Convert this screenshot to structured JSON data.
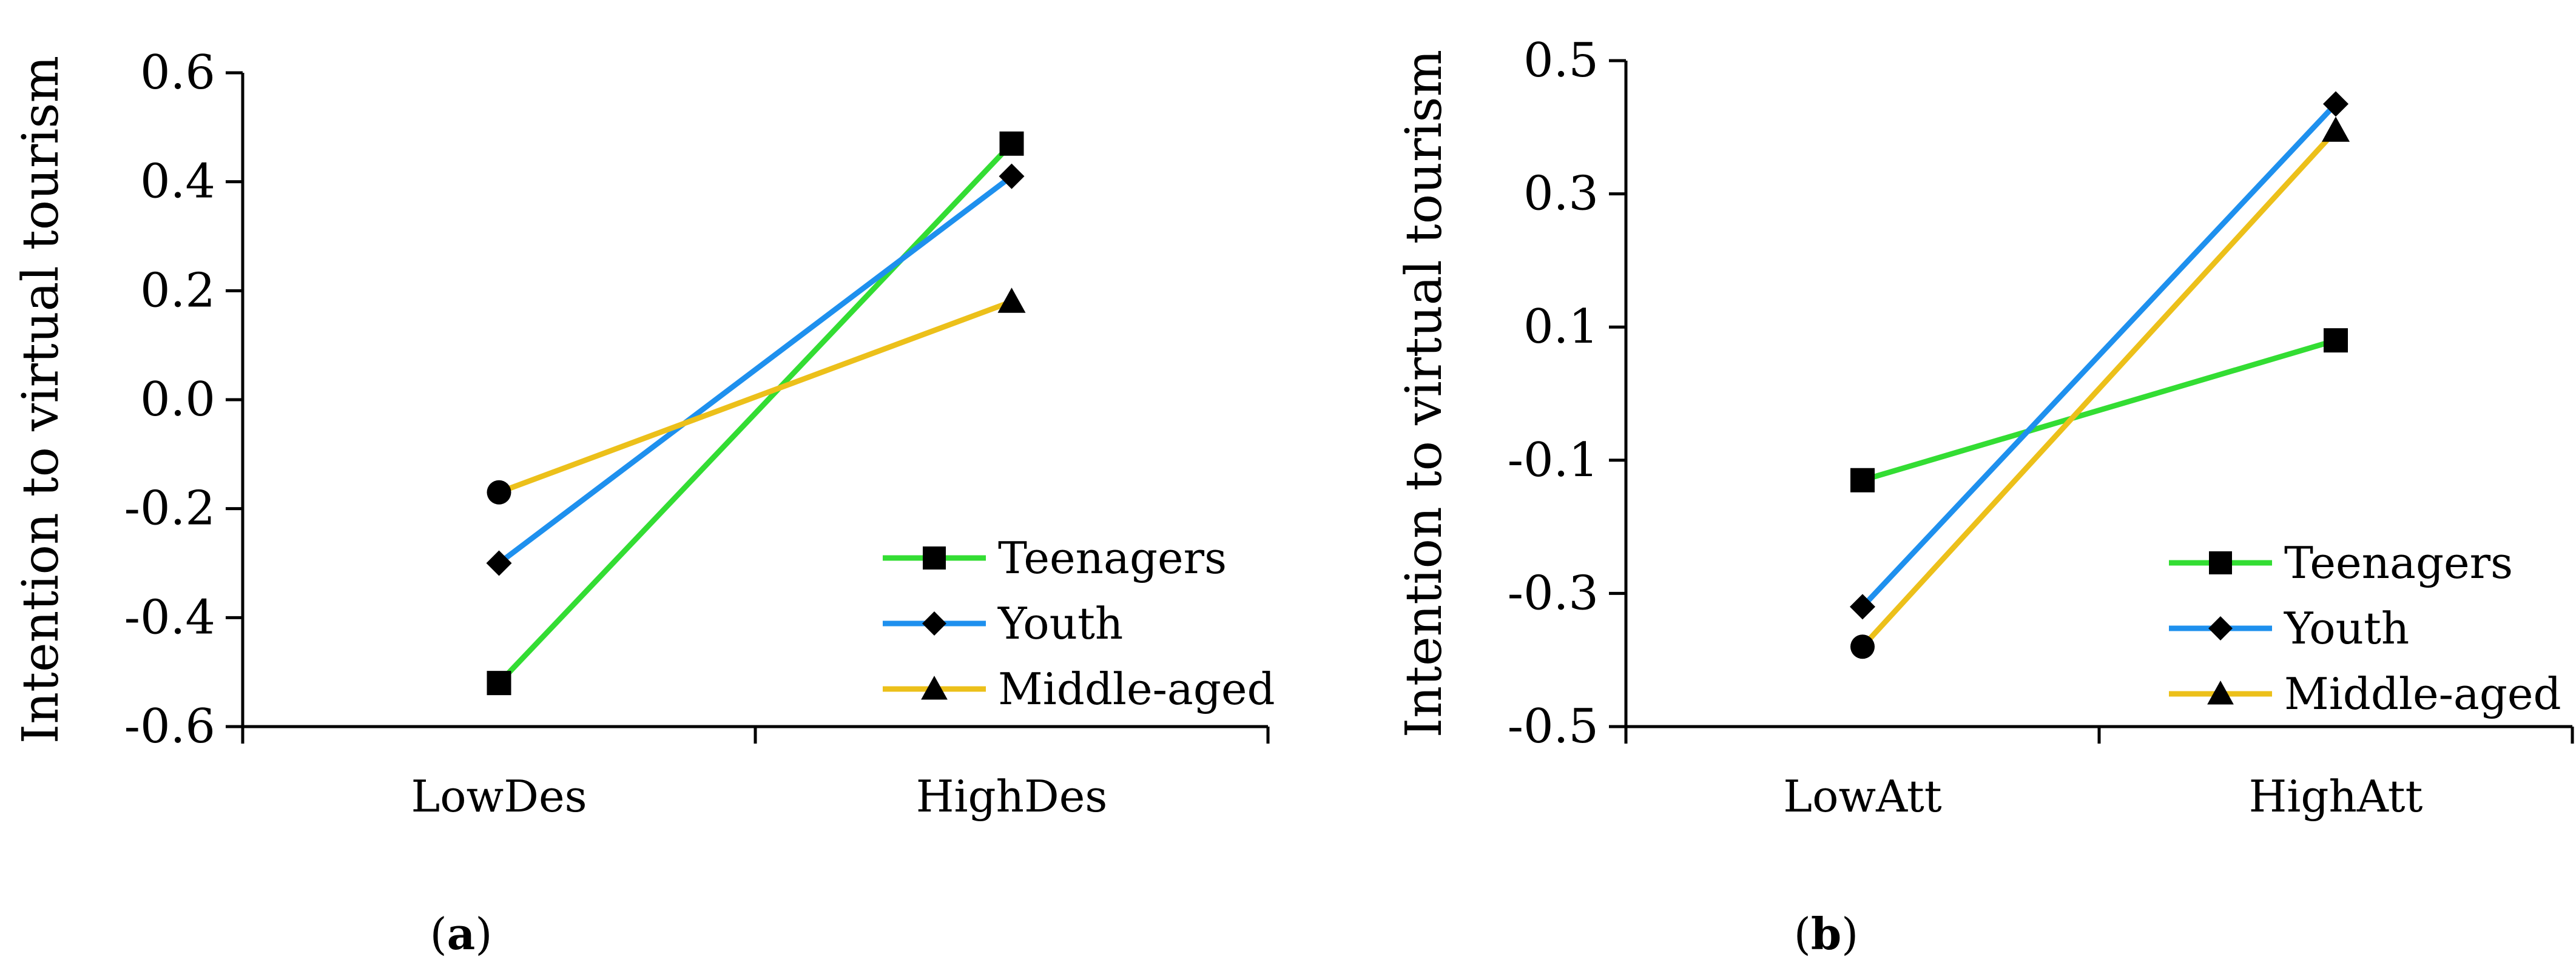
{
  "colors": {
    "teenagers": "#33dd33",
    "youth": "#1e90ee",
    "middle_aged": "#ecc01a",
    "axis": "#000000",
    "marker": "#000000"
  },
  "chart_data": [
    {
      "type": "line",
      "panel": "a",
      "ylabel": "Intention to virtual tourism",
      "categories": [
        "LowDes",
        "HighDes"
      ],
      "ylim": [
        -0.6,
        0.6
      ],
      "yticks": [
        "-0.6",
        "-0.4",
        "-0.2",
        "0.0",
        "0.2",
        "0.4",
        "0.6"
      ],
      "grid": false,
      "legend_position": "bottom-right",
      "series": [
        {
          "name": "Teenagers",
          "key": "teenagers",
          "values": [
            -0.52,
            0.47
          ]
        },
        {
          "name": "Youth",
          "key": "youth",
          "values": [
            -0.3,
            0.41
          ]
        },
        {
          "name": "Middle-aged",
          "key": "middle_aged",
          "values": [
            -0.17,
            0.18
          ]
        }
      ]
    },
    {
      "type": "line",
      "panel": "b",
      "ylabel": "Intention to virtual tourism",
      "categories": [
        "LowAtt",
        "HighAtt"
      ],
      "ylim": [
        -0.5,
        0.5
      ],
      "yticks": [
        "-0.5",
        "-0.3",
        "-0.1",
        "0.1",
        "0.3",
        "0.5"
      ],
      "grid": false,
      "legend_position": "bottom-right",
      "series": [
        {
          "name": "Teenagers",
          "key": "teenagers",
          "values": [
            -0.13,
            0.08
          ]
        },
        {
          "name": "Youth",
          "key": "youth",
          "values": [
            -0.32,
            0.435
          ]
        },
        {
          "name": "Middle-aged",
          "key": "middle_aged",
          "values": [
            -0.38,
            0.395
          ]
        }
      ]
    }
  ]
}
